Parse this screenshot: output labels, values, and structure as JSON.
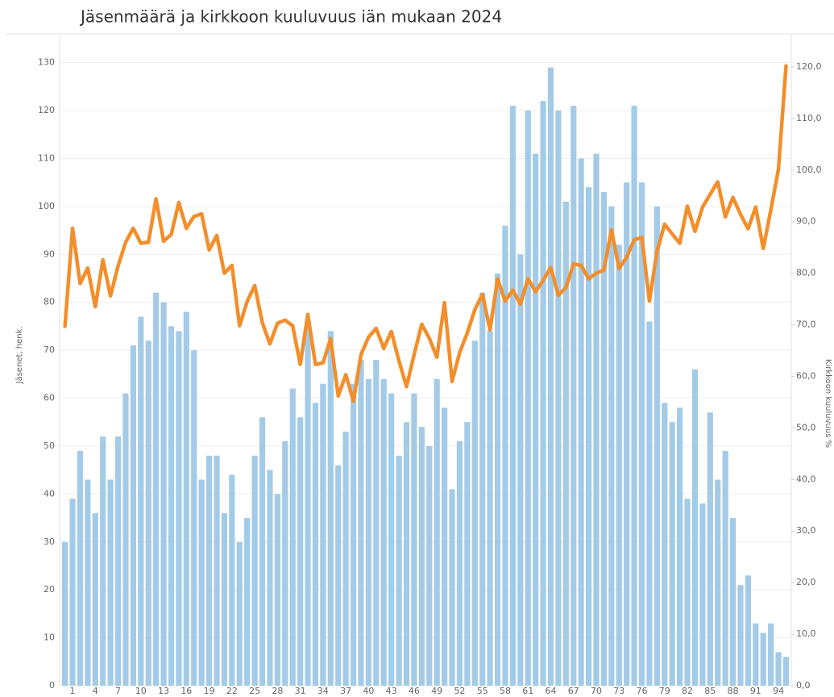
{
  "chart_data": {
    "type": "combo",
    "title": "Jäsenmäärä ja kirkkoon kuuluvuus iän mukaan 2024",
    "ylabel": "Jäsenet, henk.",
    "y2label": "Kirkkoon kuuluvuus %",
    "categories": [
      null,
      1,
      null,
      null,
      4,
      null,
      null,
      7,
      null,
      null,
      10,
      null,
      null,
      13,
      null,
      null,
      16,
      null,
      null,
      19,
      null,
      null,
      22,
      null,
      null,
      25,
      null,
      null,
      28,
      null,
      null,
      31,
      null,
      null,
      34,
      null,
      null,
      37,
      null,
      null,
      40,
      null,
      null,
      43,
      null,
      null,
      46,
      null,
      null,
      49,
      null,
      null,
      52,
      null,
      null,
      55,
      null,
      null,
      58,
      null,
      null,
      61,
      null,
      null,
      64,
      null,
      null,
      67,
      null,
      null,
      70,
      null,
      null,
      73,
      null,
      null,
      76,
      null,
      null,
      79,
      null,
      null,
      82,
      null,
      null,
      85,
      null,
      null,
      88,
      null,
      null,
      91,
      null,
      null,
      94,
      null
    ],
    "series": [
      {
        "type": "bar",
        "color": "#a3cbe7",
        "values": [
          30,
          39,
          49,
          43,
          36,
          52,
          43,
          52,
          61,
          71,
          77,
          72,
          82,
          80,
          75,
          74,
          78,
          70,
          43,
          48,
          48,
          36,
          44,
          30,
          35,
          48,
          56,
          45,
          40,
          51,
          62,
          56,
          75,
          59,
          63,
          74,
          46,
          53,
          63,
          68,
          64,
          68,
          64,
          61,
          48,
          55,
          61,
          54,
          50,
          64,
          58,
          41,
          51,
          55,
          72,
          82,
          74,
          86,
          96,
          121,
          90,
          120,
          111,
          122,
          129,
          120,
          101,
          121,
          110,
          104,
          111,
          103,
          100,
          92,
          105,
          121,
          105,
          76,
          100,
          59,
          55,
          58,
          39,
          66,
          38,
          57,
          43,
          49,
          35,
          21,
          23,
          13,
          11,
          13,
          7,
          6
        ]
      },
      {
        "type": "line",
        "axis": "y2",
        "color": "#f28e2b",
        "values": [
          69.7,
          88.7,
          78,
          81,
          73.5,
          82.6,
          75.6,
          81.4,
          86,
          88.7,
          85.8,
          86,
          94.4,
          86.2,
          87.5,
          93.7,
          88.7,
          91,
          91.5,
          84.5,
          87.3,
          80,
          81.5,
          69.8,
          74.5,
          77.6,
          70.4,
          66.3,
          70.3,
          70.9,
          69.8,
          62.3,
          72,
          62.3,
          62.6,
          67.3,
          56.2,
          60.3,
          55.2,
          64.2,
          67.6,
          69.3,
          65.4,
          68.7,
          63,
          58,
          64.2,
          70.1,
          67.4,
          63.7,
          74.3,
          59,
          64.6,
          68.4,
          72.9,
          75.9,
          69,
          78.9,
          74.6,
          76.7,
          74,
          78.9,
          76.4,
          78.6,
          81.1,
          75.7,
          77.2,
          81.8,
          81.5,
          78.9,
          80,
          80.6,
          88.4,
          80.9,
          83.1,
          86.5,
          86.9,
          74.6,
          84.2,
          89.5,
          87.6,
          85.8,
          93,
          88.1,
          92.8,
          95.3,
          97.7,
          90.9,
          94.7,
          91.4,
          88.6,
          92.8,
          84.8,
          92.3,
          100.2,
          120.2
        ]
      }
    ],
    "ylim": [
      0,
      136
    ],
    "yticks": [
      0,
      10,
      20,
      30,
      40,
      50,
      60,
      70,
      80,
      90,
      100,
      110,
      120,
      130
    ],
    "y2lim": [
      0,
      126.4
    ],
    "y2ticks": [
      {
        "value": 0,
        "label": "0,0"
      },
      {
        "value": 10,
        "label": "10,0"
      },
      {
        "value": 20,
        "label": "20,0"
      },
      {
        "value": 30,
        "label": "30,0"
      },
      {
        "value": 40,
        "label": "40,0"
      },
      {
        "value": 50,
        "label": "50,0"
      },
      {
        "value": 60,
        "label": "60,0"
      },
      {
        "value": 70,
        "label": "70,0"
      },
      {
        "value": 80,
        "label": "80,0"
      },
      {
        "value": 90,
        "label": "90,0"
      },
      {
        "value": 100,
        "label": "100,0"
      },
      {
        "value": 110,
        "label": "110,0"
      },
      {
        "value": 120,
        "label": "120,0"
      }
    ],
    "grid": true
  }
}
